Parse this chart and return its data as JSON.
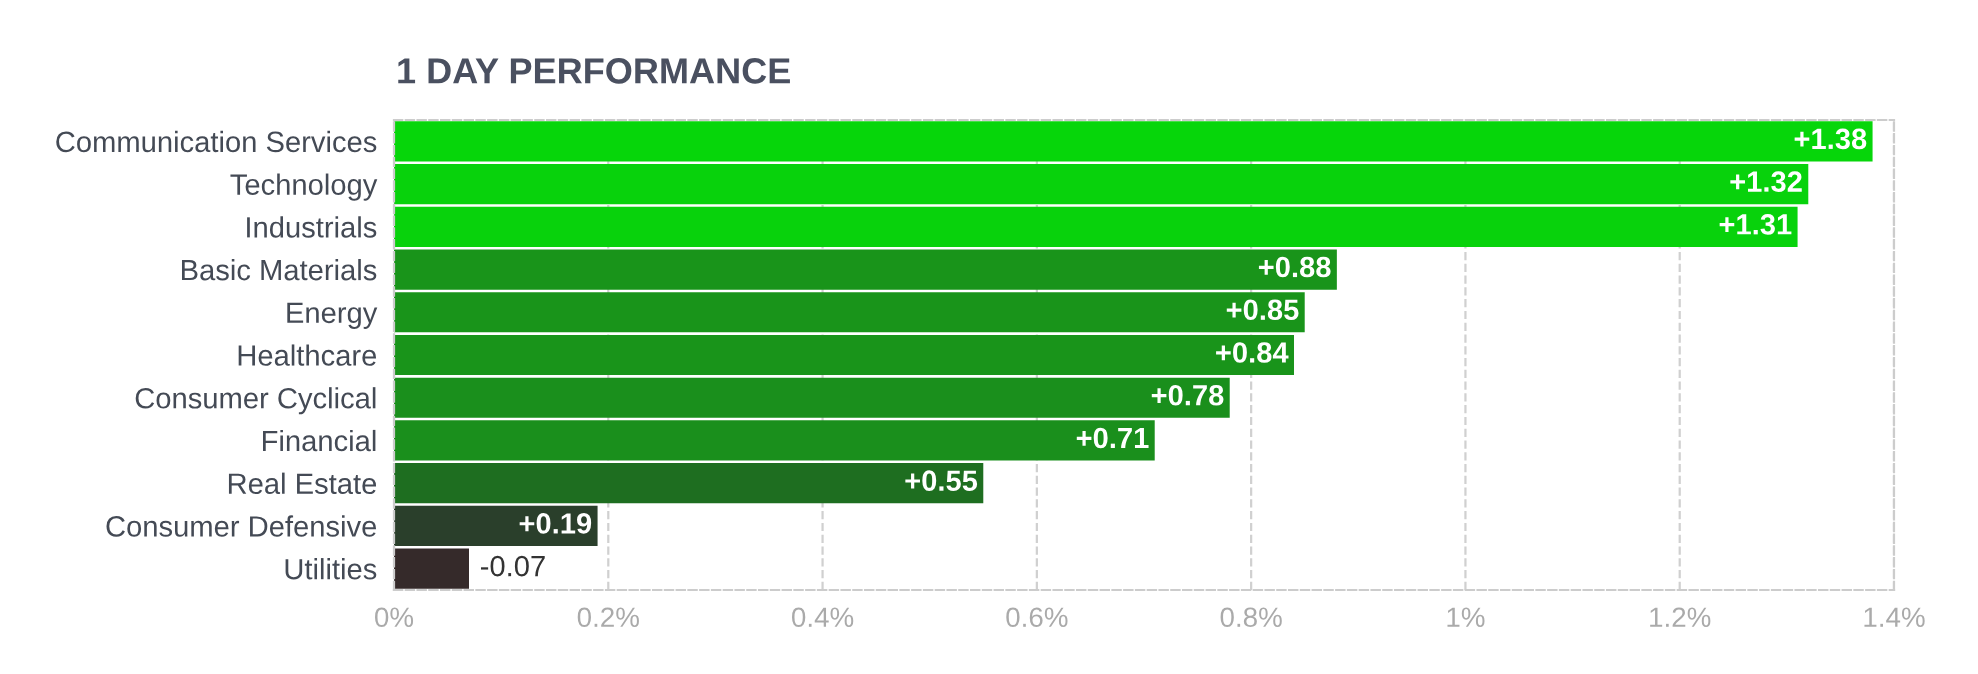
{
  "chart_data": {
    "type": "bar",
    "orientation": "horizontal",
    "title": "1 DAY PERFORMANCE",
    "categories": [
      "Communication Services",
      "Technology",
      "Industrials",
      "Basic Materials",
      "Energy",
      "Healthcare",
      "Consumer Cyclical",
      "Financial",
      "Real Estate",
      "Consumer Defensive",
      "Utilities"
    ],
    "values": [
      1.38,
      1.32,
      1.31,
      0.88,
      0.85,
      0.84,
      0.78,
      0.71,
      0.55,
      0.19,
      -0.07
    ],
    "base": [
      0,
      0,
      0,
      0,
      0,
      0,
      0,
      0,
      0,
      0,
      0.07
    ],
    "colors": [
      "#06d60a",
      "#08d20c",
      "#08d20c",
      "#19941a",
      "#19941a",
      "#19941a",
      "#1a8f1c",
      "#1a8f1c",
      "#1e6e20",
      "#2a3f2b",
      "#352a2a"
    ],
    "value_labels": [
      "+1.38",
      "+1.32",
      "+1.31",
      "+0.88",
      "+0.85",
      "+0.84",
      "+0.78",
      "+0.71",
      "+0.55",
      "+0.19",
      "-0.07"
    ],
    "xlim": [
      0,
      1.4
    ],
    "xticks": [
      {
        "value": 0,
        "label": "0%"
      },
      {
        "value": 0.2,
        "label": "0.2%"
      },
      {
        "value": 0.4,
        "label": "0.4%"
      },
      {
        "value": 0.6,
        "label": "0.6%"
      },
      {
        "value": 0.8,
        "label": "0.8%"
      },
      {
        "value": 1,
        "label": "1%"
      },
      {
        "value": 1.2,
        "label": "1.2%"
      },
      {
        "value": 1.4,
        "label": "1.4%"
      }
    ],
    "grid": "x",
    "legend": false
  }
}
